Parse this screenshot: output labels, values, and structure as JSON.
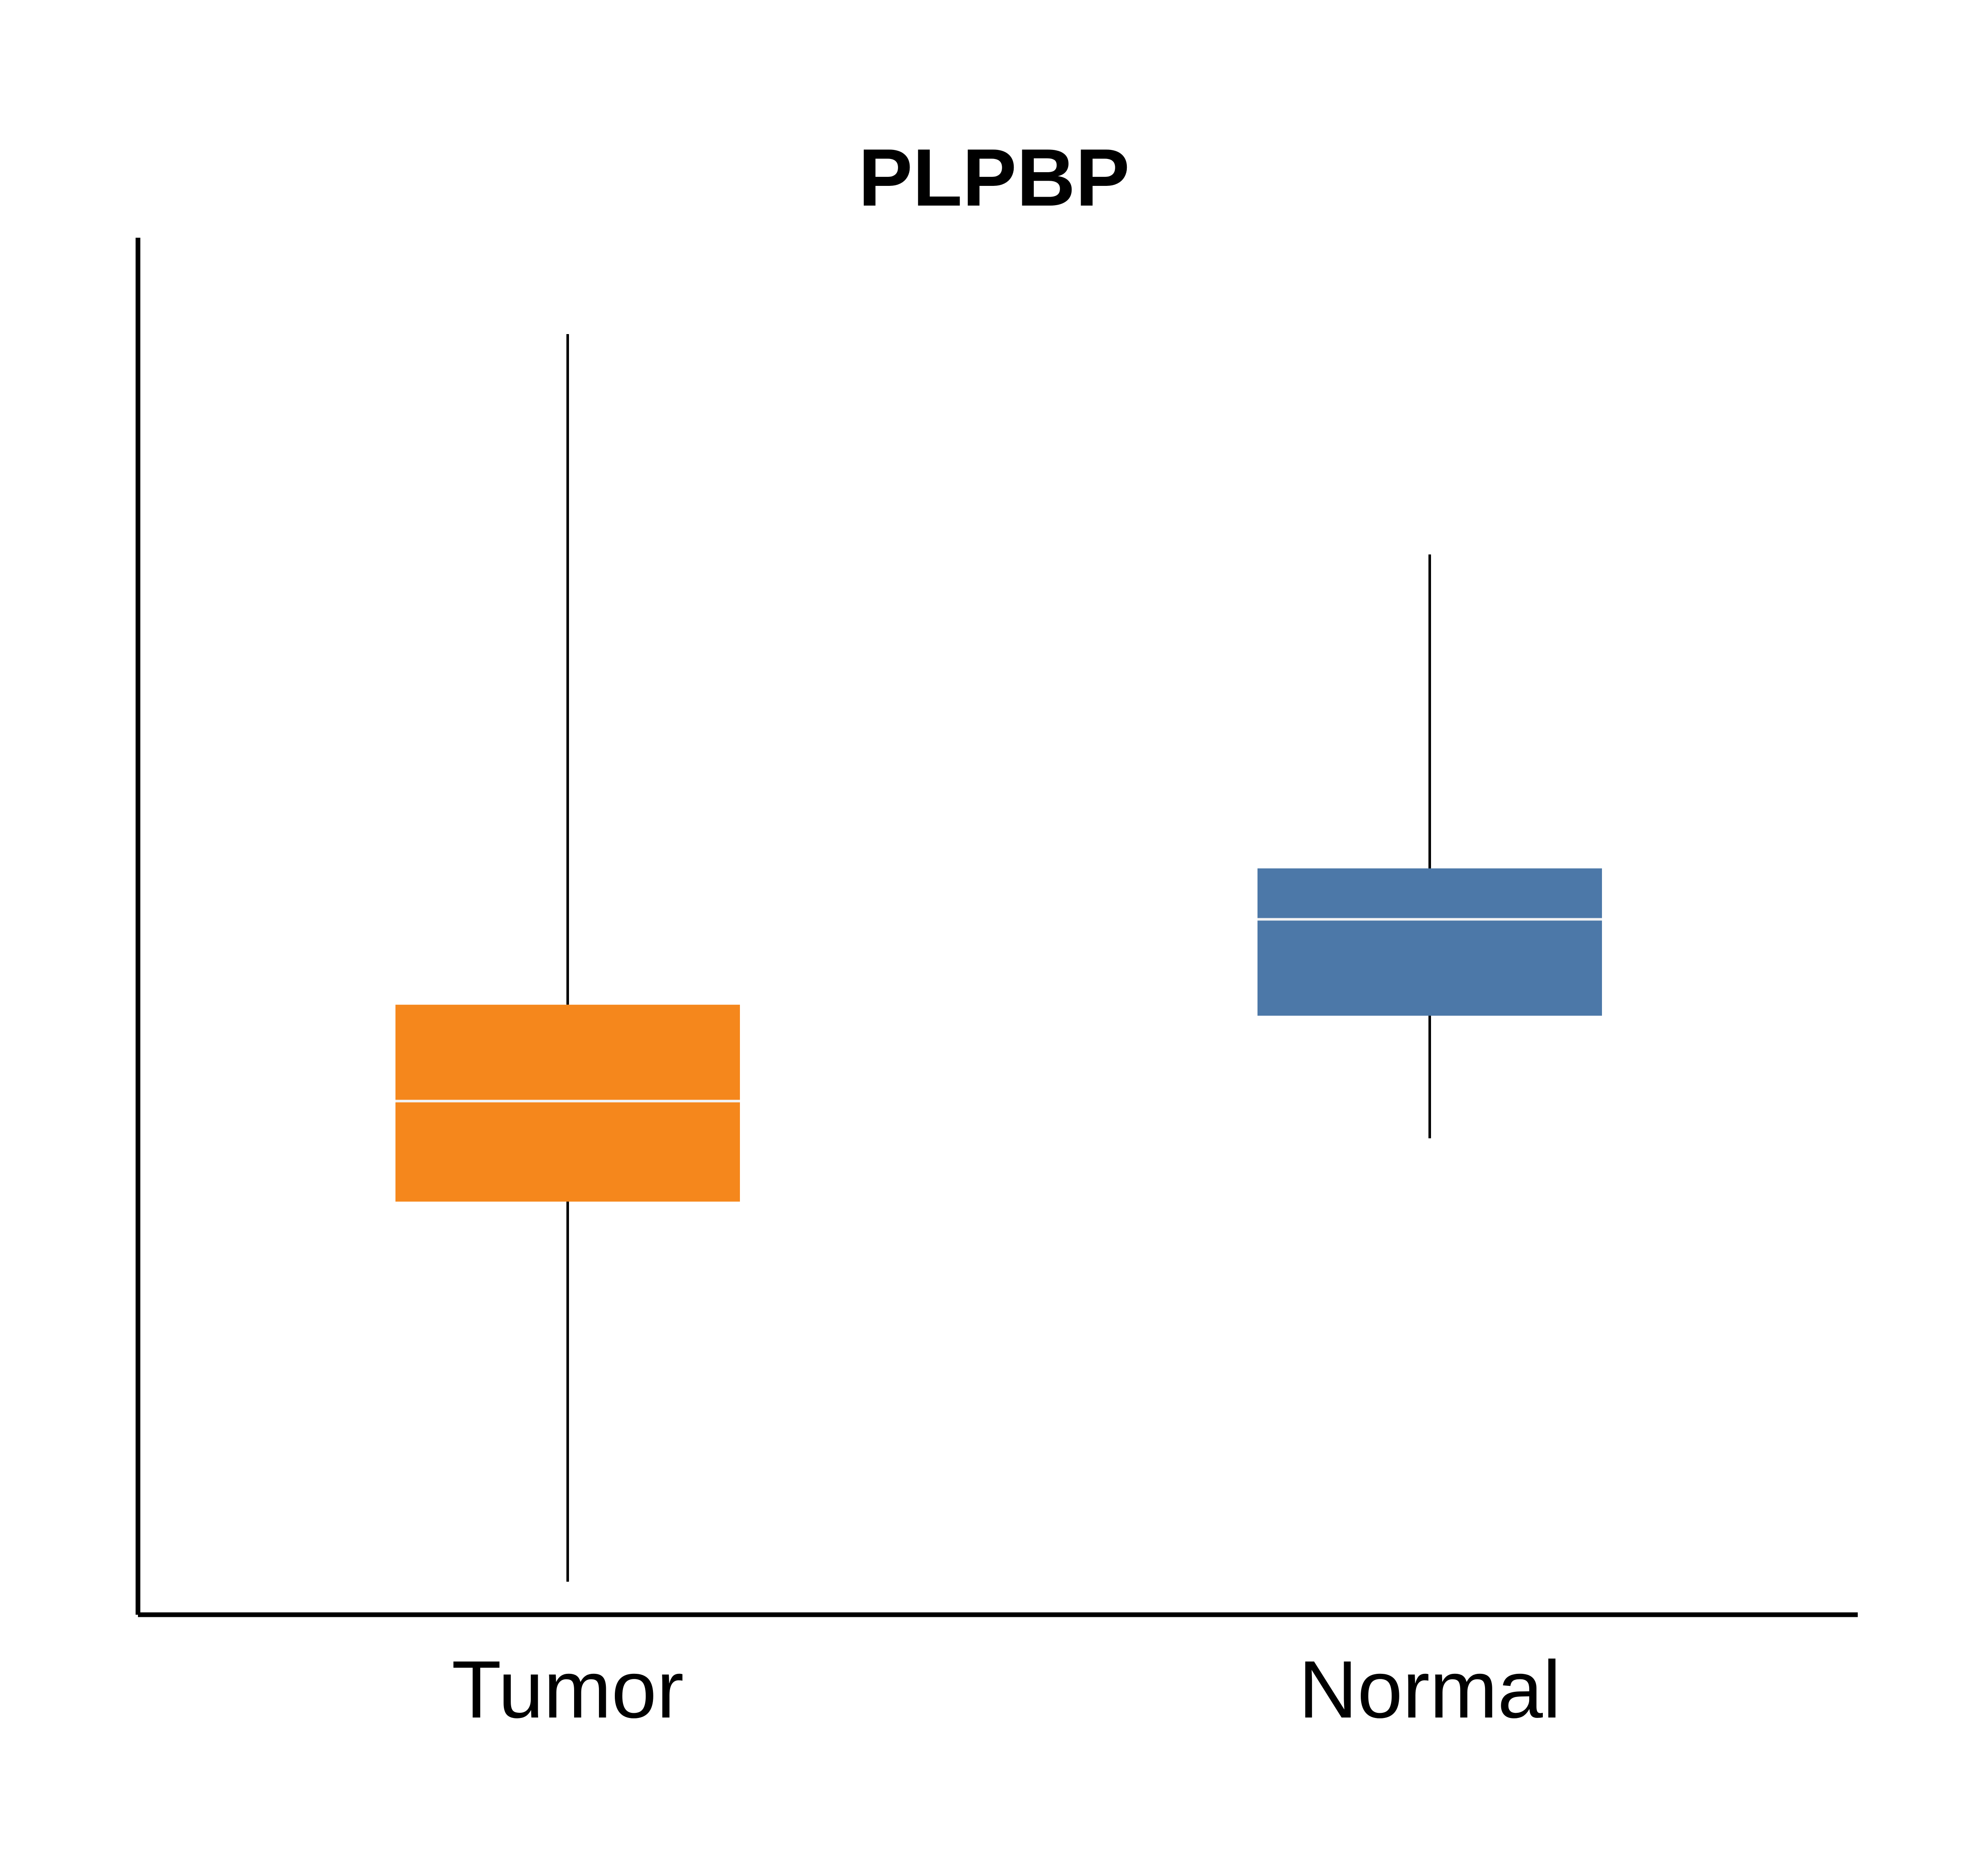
{
  "chart_data": {
    "type": "box",
    "title": "PLPBP",
    "xlabel": "",
    "ylabel": "",
    "ylim": [
      0,
      100
    ],
    "y_ticks_shown": false,
    "grid": false,
    "legend": "none",
    "categories": [
      "Tumor",
      "Normal"
    ],
    "boxes": [
      {
        "category": "Tumor",
        "whisker_low": 2.4,
        "q1": 30.0,
        "median": 37.3,
        "q3": 44.3,
        "whisker_high": 93.0,
        "color": "#F5871C"
      },
      {
        "category": "Normal",
        "whisker_low": 34.6,
        "q1": 43.5,
        "median": 50.5,
        "q3": 54.2,
        "whisker_high": 77.0,
        "color": "#4C78A8"
      }
    ],
    "median_line_color": "#F2F2F2",
    "whisker_color": "#000000"
  }
}
